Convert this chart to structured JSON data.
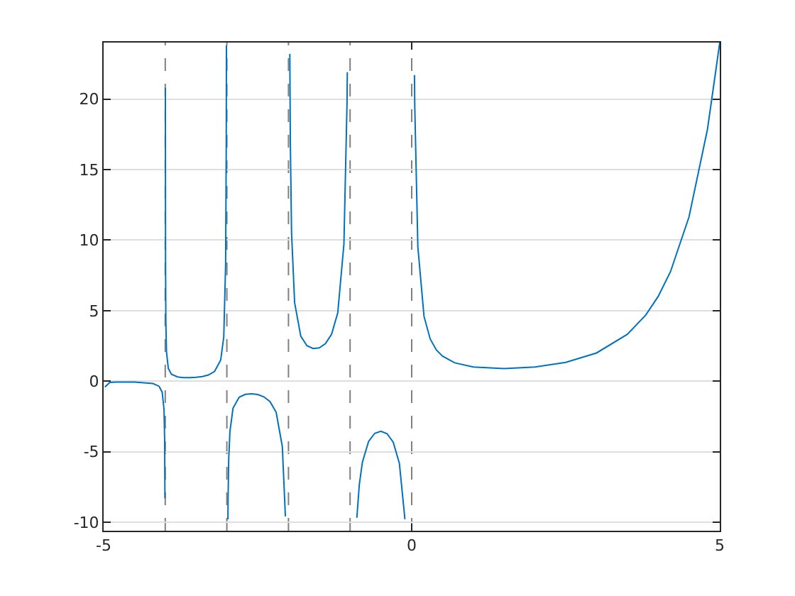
{
  "chart_data": {
    "type": "line",
    "x": [
      -4.98,
      -4.9,
      -4.8,
      -4.5,
      -4.2,
      -4.1,
      -4.05,
      -4.02,
      -4.01,
      -4.005,
      null,
      -3.998,
      -3.995,
      -3.99,
      -3.98,
      -3.95,
      -3.9,
      -3.8,
      -3.7,
      -3.6,
      -3.5,
      -3.4,
      -3.3,
      -3.2,
      -3.1,
      -3.05,
      -3.02,
      -3.01,
      -3.007,
      null,
      -2.983,
      -2.98,
      -2.97,
      -2.95,
      -2.9,
      -2.8,
      -2.7,
      -2.6,
      -2.5,
      -2.4,
      -2.3,
      -2.2,
      -2.1,
      -2.05,
      null,
      -1.978,
      -1.97,
      -1.95,
      -1.9,
      -1.8,
      -1.7,
      -1.6,
      -1.5,
      -1.4,
      -1.3,
      -1.2,
      -1.1,
      -1.05,
      -1.045,
      null,
      -0.89,
      -0.85,
      -0.8,
      -0.7,
      -0.6,
      -0.5,
      -0.4,
      -0.3,
      -0.2,
      -0.11,
      null,
      0.045,
      0.05,
      0.1,
      0.2,
      0.3,
      0.4,
      0.5,
      0.7,
      1,
      1.5,
      2,
      2.5,
      3,
      3.5,
      3.8,
      4,
      4.2,
      4.5,
      4.8,
      5
    ],
    "series": [
      {
        "color": "#0072bd",
        "values": [
          -0.42,
          -0.09,
          -0.062,
          -0.06,
          -0.164,
          -0.364,
          -0.776,
          -2.0,
          -4.1,
          -8.3,
          null,
          20.8,
          8.3,
          4.17,
          2.08,
          0.902,
          0.492,
          0.3,
          0.252,
          0.247,
          0.27,
          0.326,
          0.439,
          0.689,
          1.492,
          3.14,
          8.3,
          16.7,
          23.8,
          null,
          -9.8,
          -8.3,
          -5.56,
          -3.563,
          -1.918,
          -1.139,
          -0.931,
          -0.889,
          -0.945,
          -1.108,
          -1.447,
          -2.205,
          -4.626,
          -9.58,
          null,
          23.2,
          17.15,
          10.51,
          5.563,
          3.188,
          2.514,
          2.311,
          2.363,
          2.659,
          3.328,
          4.851,
          9.715,
          19.65,
          21.9,
          null,
          -9.68,
          -7.318,
          -5.739,
          -4.274,
          -3.697,
          -3.545,
          -3.723,
          -4.327,
          -5.821,
          -9.79,
          null,
          21.7,
          19.47,
          9.514,
          4.591,
          2.992,
          2.218,
          1.772,
          1.298,
          1,
          0.886,
          1,
          1.329,
          2,
          3.323,
          4.694,
          6,
          7.757,
          11.63,
          17.84,
          24
        ]
      }
    ],
    "xlim": [
      -5,
      5
    ],
    "xticks": [
      -5,
      0,
      5
    ],
    "ylim": [
      -10.6,
      24
    ],
    "yticks": [
      -10,
      -5,
      0,
      5,
      10,
      15,
      20
    ],
    "grid": "y",
    "line_style": "solid",
    "ref_lines": [
      {
        "axis": "x",
        "value": -4,
        "color": "#808080",
        "line_style": "dashed"
      },
      {
        "axis": "x",
        "value": -3,
        "color": "#808080",
        "line_style": "dashed"
      },
      {
        "axis": "x",
        "value": -2,
        "color": "#808080",
        "line_style": "dashed"
      },
      {
        "axis": "x",
        "value": -1,
        "color": "#808080",
        "line_style": "dashed"
      },
      {
        "axis": "x",
        "value": 0,
        "color": "#808080",
        "line_style": "dashed"
      }
    ]
  }
}
